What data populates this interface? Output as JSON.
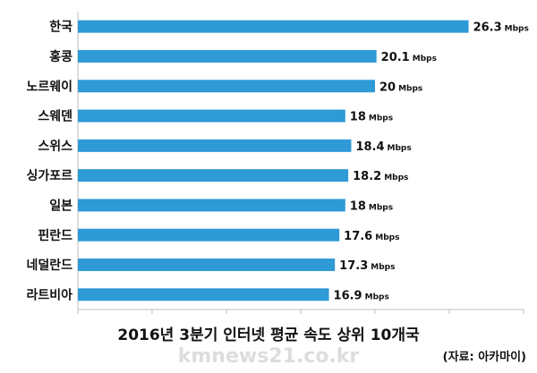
{
  "chart_data": {
    "type": "bar",
    "orientation": "horizontal",
    "title": "2016년 3분기 인터넷 평균 속도 상위 10개국",
    "source": "(자료: 아카마이)",
    "unit": "Mbps",
    "categories": [
      "한국",
      "홍콩",
      "노르웨이",
      "스웨덴",
      "스위스",
      "싱가포르",
      "일본",
      "핀란드",
      "네덜란드",
      "라트비아"
    ],
    "values": [
      26.3,
      20.1,
      20,
      18,
      18.4,
      18.2,
      18,
      17.6,
      17.3,
      16.9
    ],
    "value_labels": [
      "26.3",
      "20.1",
      "20",
      "18",
      "18.4",
      "18.2",
      "18",
      "17.6",
      "17.3",
      "16.9"
    ],
    "xlim": [
      0,
      30
    ],
    "grid": false,
    "bar_color": "#2e9ad6"
  },
  "watermark": "kmnews21.co.kr"
}
